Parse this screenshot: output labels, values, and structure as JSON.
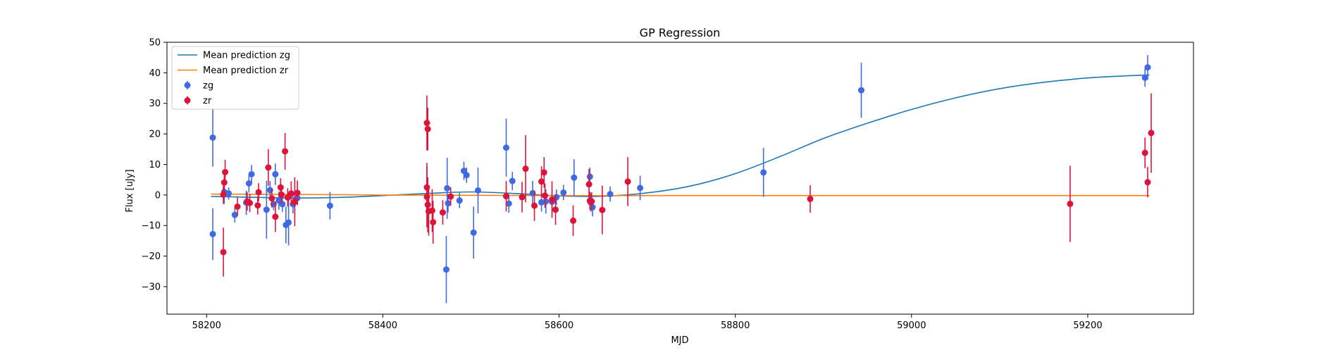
{
  "chart_data": {
    "type": "scatter",
    "title": "GP Regression",
    "xlabel": "MJD",
    "ylabel": "Flux [uJy]",
    "xlim": [
      58155,
      59320
    ],
    "ylim": [
      -39,
      50
    ],
    "xticks": [
      58200,
      58400,
      58600,
      58800,
      59000,
      59200
    ],
    "yticks": [
      -30,
      -20,
      -10,
      0,
      10,
      20,
      30,
      40,
      50
    ],
    "xtick_labels": [
      "58200",
      "58400",
      "58600",
      "58800",
      "59000",
      "59200"
    ],
    "ytick_labels": [
      "−30",
      "−20",
      "−10",
      "0",
      "10",
      "20",
      "30",
      "40",
      "50"
    ],
    "grid": false,
    "legend_position": "top-left",
    "legend": [
      {
        "label": "Mean prediction zg",
        "kind": "line",
        "color": "#1f77b4"
      },
      {
        "label": "Mean prediction zr",
        "kind": "line",
        "color": "#ff7f0e"
      },
      {
        "label": "zg",
        "kind": "errorbar",
        "color": "#4169e1"
      },
      {
        "label": "zr",
        "kind": "errorbar",
        "color": "#dc143c"
      }
    ],
    "lines": [
      {
        "name": "Mean prediction zg",
        "color": "#1f77b4",
        "x": [
          58205,
          58230,
          58260,
          58300,
          58350,
          58400,
          58450,
          58500,
          58550,
          58600,
          58650,
          58700,
          58750,
          58800,
          58850,
          58900,
          58950,
          59000,
          59050,
          59100,
          59150,
          59200,
          59250,
          59270
        ],
        "y": [
          -0.5,
          -0.6,
          -0.8,
          -1.0,
          -0.8,
          -0.2,
          0.5,
          1.0,
          0.5,
          -0.3,
          -0.4,
          0.7,
          3.0,
          7.0,
          12.5,
          18.5,
          23.5,
          28.0,
          31.8,
          34.8,
          36.9,
          38.3,
          39.1,
          39.3
        ]
      },
      {
        "name": "Mean prediction zr",
        "color": "#ff7f0e",
        "x": [
          58205,
          58300,
          58400,
          58500,
          58600,
          58700,
          58800,
          58900,
          59000,
          59100,
          59200,
          59270
        ],
        "y": [
          0.3,
          0.2,
          0,
          -0.1,
          -0.2,
          -0.2,
          -0.2,
          -0.2,
          -0.2,
          -0.2,
          -0.2,
          -0.2
        ]
      }
    ],
    "series": [
      {
        "name": "zg",
        "color": "#4169e1",
        "points": [
          {
            "x": 58207,
            "y": 18.8,
            "err": 9.5
          },
          {
            "x": 58207,
            "y": -12.8,
            "err": 8.5
          },
          {
            "x": 58220,
            "y": 1.0,
            "err": 4
          },
          {
            "x": 58225,
            "y": 0.5,
            "err": 2
          },
          {
            "x": 58232,
            "y": -6.5,
            "err": 2.5
          },
          {
            "x": 58245,
            "y": -2.5,
            "err": 4
          },
          {
            "x": 58248,
            "y": 3.8,
            "err": 3
          },
          {
            "x": 58251,
            "y": 6.8,
            "err": 3
          },
          {
            "x": 58268,
            "y": -4.8,
            "err": 9.5
          },
          {
            "x": 58272,
            "y": 1.6,
            "err": 3
          },
          {
            "x": 58276,
            "y": -3.0,
            "err": 2
          },
          {
            "x": 58278,
            "y": 6.8,
            "err": 3.5
          },
          {
            "x": 58282,
            "y": -1.8,
            "err": 3
          },
          {
            "x": 58286,
            "y": -3.0,
            "err": 2.5
          },
          {
            "x": 58290,
            "y": -9.8,
            "err": 6
          },
          {
            "x": 58293,
            "y": -9.0,
            "err": 7.5
          },
          {
            "x": 58298,
            "y": -3.0,
            "err": 3
          },
          {
            "x": 58303,
            "y": -1.0,
            "err": 2
          },
          {
            "x": 58340,
            "y": -3.5,
            "err": 4.5
          },
          {
            "x": 58472,
            "y": -24.4,
            "err": 11
          },
          {
            "x": 58473,
            "y": 2.2,
            "err": 10
          },
          {
            "x": 58474,
            "y": -2.7,
            "err": 3
          },
          {
            "x": 58487,
            "y": -1.8,
            "err": 2.5
          },
          {
            "x": 58492,
            "y": 7.9,
            "err": 3
          },
          {
            "x": 58495,
            "y": 6.5,
            "err": 2.5
          },
          {
            "x": 58503,
            "y": -12.3,
            "err": 8.5
          },
          {
            "x": 58508,
            "y": 1.5,
            "err": 7.5
          },
          {
            "x": 58540,
            "y": 15.5,
            "err": 9.5
          },
          {
            "x": 58543,
            "y": -2.8,
            "err": 3
          },
          {
            "x": 58547,
            "y": 4.6,
            "err": 3
          },
          {
            "x": 58570,
            "y": 0.6,
            "err": 4
          },
          {
            "x": 58580,
            "y": -2.4,
            "err": 3
          },
          {
            "x": 58585,
            "y": -2.1,
            "err": 4
          },
          {
            "x": 58592,
            "y": -2.2,
            "err": 4
          },
          {
            "x": 58597,
            "y": -0.7,
            "err": 2.5
          },
          {
            "x": 58605,
            "y": 0.8,
            "err": 2.5
          },
          {
            "x": 58617,
            "y": 5.7,
            "err": 6
          },
          {
            "x": 58635,
            "y": 6.0,
            "err": 3
          },
          {
            "x": 58636,
            "y": -2.5,
            "err": 3
          },
          {
            "x": 58638,
            "y": -4.0,
            "err": 3
          },
          {
            "x": 58658,
            "y": 0.3,
            "err": 2.5
          },
          {
            "x": 58692,
            "y": 2.3,
            "err": 4
          },
          {
            "x": 58832,
            "y": 7.4,
            "err": 8
          },
          {
            "x": 58943,
            "y": 34.3,
            "err": 9
          },
          {
            "x": 59265,
            "y": 38.4,
            "err": 3
          },
          {
            "x": 59268,
            "y": 41.8,
            "err": 4
          }
        ]
      },
      {
        "name": "zr",
        "color": "#dc143c",
        "points": [
          {
            "x": 58219,
            "y": -18.7,
            "err": 8
          },
          {
            "x": 58219,
            "y": 0.1,
            "err": 3
          },
          {
            "x": 58220,
            "y": 4.1,
            "err": 4
          },
          {
            "x": 58221,
            "y": 7.5,
            "err": 4
          },
          {
            "x": 58235,
            "y": -3.8,
            "err": 3
          },
          {
            "x": 58246,
            "y": -2.1,
            "err": 3
          },
          {
            "x": 58249,
            "y": -2.6,
            "err": 3
          },
          {
            "x": 58258,
            "y": -3.4,
            "err": 3
          },
          {
            "x": 58259,
            "y": 0.9,
            "err": 3
          },
          {
            "x": 58270,
            "y": 9.0,
            "err": 6
          },
          {
            "x": 58274,
            "y": -1.1,
            "err": 3
          },
          {
            "x": 58278,
            "y": -7.1,
            "err": 5
          },
          {
            "x": 58284,
            "y": 2.5,
            "err": 3
          },
          {
            "x": 58285,
            "y": 0.1,
            "err": 3
          },
          {
            "x": 58289,
            "y": 14.3,
            "err": 6
          },
          {
            "x": 58292,
            "y": -0.8,
            "err": 3
          },
          {
            "x": 58296,
            "y": 0.5,
            "err": 4
          },
          {
            "x": 58300,
            "y": -2.2,
            "err": 8
          },
          {
            "x": 58303,
            "y": 0.7,
            "err": 4
          },
          {
            "x": 58450,
            "y": 23.6,
            "err": 9
          },
          {
            "x": 58451,
            "y": 21.6,
            "err": 7
          },
          {
            "x": 58450,
            "y": 2.5,
            "err": 8
          },
          {
            "x": 58450,
            "y": -0.6,
            "err": 10
          },
          {
            "x": 58451,
            "y": -3.2,
            "err": 9
          },
          {
            "x": 58452,
            "y": -5.3,
            "err": 8
          },
          {
            "x": 58456,
            "y": -5.1,
            "err": 7
          },
          {
            "x": 58457,
            "y": -8.9,
            "err": 7
          },
          {
            "x": 58468,
            "y": -5.7,
            "err": 4
          },
          {
            "x": 58477,
            "y": -0.5,
            "err": 3
          },
          {
            "x": 58540,
            "y": -0.4,
            "err": 5
          },
          {
            "x": 58558,
            "y": -0.7,
            "err": 5
          },
          {
            "x": 58562,
            "y": 8.6,
            "err": 11
          },
          {
            "x": 58572,
            "y": -3.5,
            "err": 5
          },
          {
            "x": 58580,
            "y": 4.4,
            "err": 5
          },
          {
            "x": 58583,
            "y": 7.4,
            "err": 5
          },
          {
            "x": 58584,
            "y": -0.2,
            "err": 4
          },
          {
            "x": 58592,
            "y": -1.5,
            "err": 6
          },
          {
            "x": 58596,
            "y": -4.8,
            "err": 5
          },
          {
            "x": 58616,
            "y": -8.4,
            "err": 5
          },
          {
            "x": 58634,
            "y": 3.5,
            "err": 5
          },
          {
            "x": 58635,
            "y": -1.9,
            "err": 3
          },
          {
            "x": 58637,
            "y": -2.1,
            "err": 3
          },
          {
            "x": 58649,
            "y": -4.9,
            "err": 8
          },
          {
            "x": 58678,
            "y": 4.4,
            "err": 8
          },
          {
            "x": 58885,
            "y": -1.3,
            "err": 4.5
          },
          {
            "x": 59180,
            "y": -2.9,
            "err": 12.5
          },
          {
            "x": 59265,
            "y": 13.8,
            "err": 5
          },
          {
            "x": 59268,
            "y": 4.2,
            "err": 5
          },
          {
            "x": 59272,
            "y": 20.3,
            "err": 13
          }
        ]
      }
    ]
  }
}
